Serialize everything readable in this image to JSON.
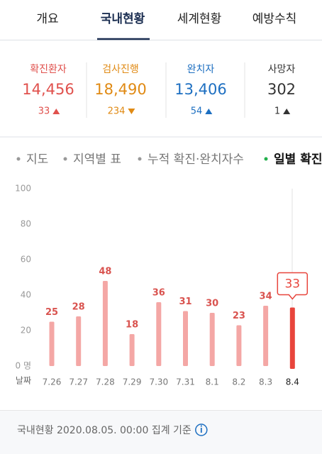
{
  "tabs": [
    "개요",
    "국내현황",
    "세계현황",
    "예방수칙"
  ],
  "stats": [
    {
      "label": "확진환자",
      "value": "14,456",
      "change": "33",
      "color": "#e0514d"
    },
    {
      "label": "검사진행",
      "value": "18,490",
      "change": "234",
      "color": "#e08a14"
    },
    {
      "label": "완치자",
      "value": "13,406",
      "change": "54",
      "color": "#1d6fc1"
    },
    {
      "label": "사망자",
      "value": "302",
      "change": "1",
      "color": "#333333"
    }
  ],
  "filters": [
    "지도",
    "지역별 표",
    "누적 확진·완치자수",
    "일별 확진"
  ],
  "chart_data": {
    "type": "bar",
    "x_label": "날짜",
    "categories": [
      "7.26",
      "7.27",
      "7.28",
      "7.29",
      "7.30",
      "7.31",
      "8.1",
      "8.2",
      "8.3",
      "8.4"
    ],
    "values": [
      25,
      28,
      48,
      18,
      36,
      31,
      30,
      23,
      34,
      33
    ],
    "color": "#f4a7a5",
    "highlight_color": "#e8453c",
    "label_color": "#d9534f",
    "ylim": [
      0,
      100
    ],
    "yticks": [
      {
        "value": 0,
        "label": "0 명"
      },
      20,
      40,
      60,
      80,
      100
    ]
  },
  "footer": "국내현황 2020.08.05. 00:00 집계 기준"
}
